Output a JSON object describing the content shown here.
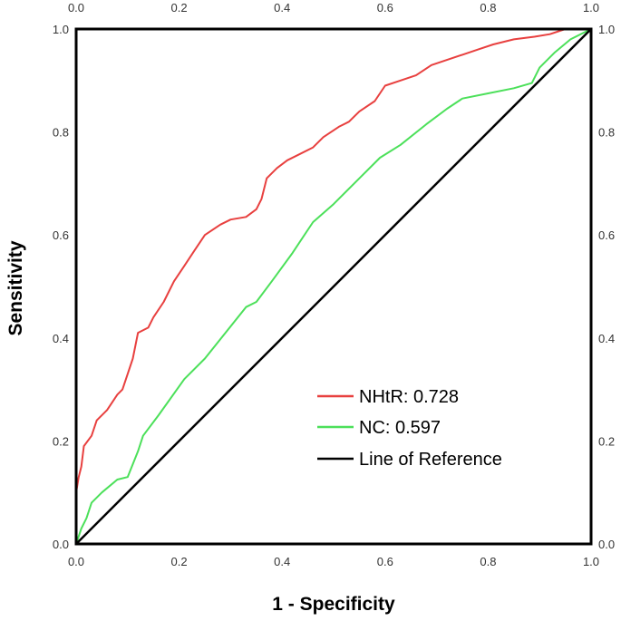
{
  "chart_data": {
    "type": "line",
    "title": "",
    "xlabel": "1 - Specificity",
    "ylabel": "Sensitivity",
    "xlim": [
      0,
      1
    ],
    "ylim": [
      0,
      1
    ],
    "xticks": [
      "0.0",
      "0.2",
      "0.4",
      "0.6",
      "0.8",
      "1.0"
    ],
    "yticks": [
      "0.0",
      "0.2",
      "0.4",
      "0.6",
      "0.8",
      "1.0"
    ],
    "grid": false,
    "legend_position": "bottom-right",
    "series": [
      {
        "name": "NHtR: 0.728",
        "color": "#e8403f",
        "points": [
          [
            0,
            0
          ],
          [
            0,
            0.1
          ],
          [
            0.005,
            0.13
          ],
          [
            0.01,
            0.15
          ],
          [
            0.015,
            0.19
          ],
          [
            0.03,
            0.21
          ],
          [
            0.04,
            0.24
          ],
          [
            0.06,
            0.26
          ],
          [
            0.08,
            0.29
          ],
          [
            0.09,
            0.3
          ],
          [
            0.1,
            0.33
          ],
          [
            0.11,
            0.36
          ],
          [
            0.12,
            0.41
          ],
          [
            0.14,
            0.42
          ],
          [
            0.15,
            0.44
          ],
          [
            0.17,
            0.47
          ],
          [
            0.19,
            0.51
          ],
          [
            0.21,
            0.54
          ],
          [
            0.23,
            0.57
          ],
          [
            0.25,
            0.6
          ],
          [
            0.28,
            0.62
          ],
          [
            0.3,
            0.63
          ],
          [
            0.33,
            0.635
          ],
          [
            0.35,
            0.65
          ],
          [
            0.36,
            0.67
          ],
          [
            0.37,
            0.71
          ],
          [
            0.39,
            0.73
          ],
          [
            0.41,
            0.745
          ],
          [
            0.43,
            0.755
          ],
          [
            0.46,
            0.77
          ],
          [
            0.48,
            0.79
          ],
          [
            0.51,
            0.81
          ],
          [
            0.53,
            0.82
          ],
          [
            0.55,
            0.84
          ],
          [
            0.58,
            0.86
          ],
          [
            0.6,
            0.89
          ],
          [
            0.63,
            0.9
          ],
          [
            0.66,
            0.91
          ],
          [
            0.69,
            0.93
          ],
          [
            0.72,
            0.94
          ],
          [
            0.75,
            0.95
          ],
          [
            0.78,
            0.96
          ],
          [
            0.81,
            0.97
          ],
          [
            0.85,
            0.98
          ],
          [
            0.89,
            0.985
          ],
          [
            0.92,
            0.99
          ],
          [
            0.95,
            1.0
          ],
          [
            1.0,
            1.0
          ]
        ]
      },
      {
        "name": "NC: 0.597",
        "color": "#4ce05a",
        "points": [
          [
            0,
            0
          ],
          [
            0.01,
            0.03
          ],
          [
            0.02,
            0.05
          ],
          [
            0.03,
            0.08
          ],
          [
            0.05,
            0.1
          ],
          [
            0.08,
            0.125
          ],
          [
            0.1,
            0.13
          ],
          [
            0.12,
            0.18
          ],
          [
            0.13,
            0.21
          ],
          [
            0.16,
            0.25
          ],
          [
            0.21,
            0.32
          ],
          [
            0.25,
            0.36
          ],
          [
            0.29,
            0.41
          ],
          [
            0.33,
            0.46
          ],
          [
            0.35,
            0.47
          ],
          [
            0.38,
            0.51
          ],
          [
            0.42,
            0.565
          ],
          [
            0.45,
            0.61
          ],
          [
            0.46,
            0.625
          ],
          [
            0.5,
            0.66
          ],
          [
            0.55,
            0.71
          ],
          [
            0.59,
            0.75
          ],
          [
            0.63,
            0.775
          ],
          [
            0.68,
            0.815
          ],
          [
            0.72,
            0.845
          ],
          [
            0.75,
            0.865
          ],
          [
            0.8,
            0.875
          ],
          [
            0.85,
            0.885
          ],
          [
            0.885,
            0.895
          ],
          [
            0.9,
            0.925
          ],
          [
            0.93,
            0.955
          ],
          [
            0.96,
            0.98
          ],
          [
            1.0,
            1.0
          ]
        ]
      },
      {
        "name": "Line of Reference",
        "color": "#000000",
        "points": [
          [
            0,
            0
          ],
          [
            1,
            1
          ]
        ]
      }
    ]
  }
}
